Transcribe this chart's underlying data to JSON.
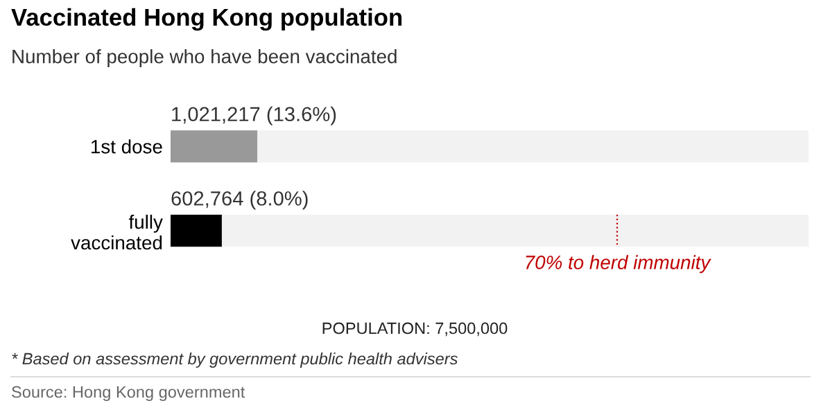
{
  "chart_data": {
    "type": "bar",
    "orientation": "horizontal",
    "stacked": true,
    "title": "Vaccinated Hong Kong population",
    "subtitle": "Number of people who have been vaccinated",
    "categories": [
      "1st dose",
      "fully\nvaccinated"
    ],
    "series": [
      {
        "colors": [
          "#999999",
          "#000000"
        ],
        "values": [
          1021217,
          602764
        ],
        "value_labels": [
          "1,021,217 (13.6%)",
          "602,764 (8.0%)"
        ]
      },
      {
        "color": "#f2f2f2",
        "values": [
          6478783,
          6897236
        ]
      }
    ],
    "xlim": [
      0,
      7500000
    ],
    "tick_labels": "y",
    "grid": false,
    "legend": false,
    "ref_lines": [
      {
        "axis": "x",
        "value": 5250000,
        "label": "70% to herd immunity",
        "color": "#c00000",
        "line_style": "dotted"
      }
    ],
    "annotations": [
      "POPULATION: 7,500,000",
      "* Based on assessment by government public health advisers",
      "Source: Hong Kong government"
    ]
  }
}
